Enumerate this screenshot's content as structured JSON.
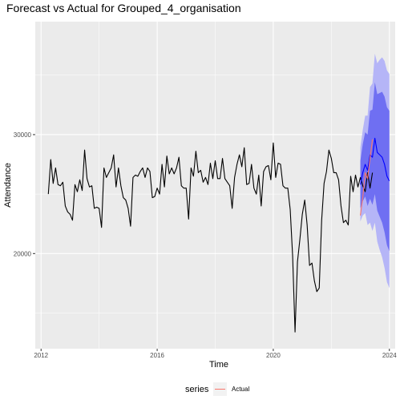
{
  "chart_data": {
    "type": "line",
    "title": "Forecast vs Actual for Grouped_4_organisation",
    "xlabel": "Time",
    "ylabel": "Attendance",
    "xlim": [
      2011.8,
      2024.2
    ],
    "ylim": [
      12000,
      39500
    ],
    "x_ticks": [
      2012,
      2016,
      2020,
      2024
    ],
    "x_tick_labels": [
      "2012",
      "2016",
      "2020",
      "2024"
    ],
    "y_ticks": [
      20000,
      30000
    ],
    "y_tick_labels": [
      "20000",
      "30000"
    ],
    "grid": true,
    "legend": {
      "title": "series",
      "position": "bottom",
      "entries": [
        {
          "label": "Actual",
          "color": "#f8766d"
        }
      ]
    },
    "colors": {
      "history": "#000000",
      "forecast": "#0000ff",
      "band80": "#6f6ff2",
      "band95": "#b5b5f7",
      "actual": "#f8766d",
      "panel": "#ebebeb"
    },
    "series": [
      {
        "role": "history",
        "start": 2012.25,
        "step": 0.0833333,
        "values": [
          25000,
          27900,
          25900,
          27200,
          25800,
          25700,
          26000,
          24000,
          23500,
          23300,
          22800,
          25800,
          25200,
          26200,
          25300,
          28700,
          26300,
          25600,
          25700,
          23800,
          23900,
          23800,
          22200,
          27200,
          26400,
          26800,
          27200,
          28300,
          25600,
          27200,
          25700,
          24700,
          24500,
          23800,
          22300,
          26400,
          26600,
          26500,
          26900,
          27200,
          26400,
          27200,
          26900,
          24700,
          24800,
          25500,
          25000,
          27500,
          25600,
          28200,
          26700,
          27200,
          26700,
          27200,
          28100,
          25700,
          25500,
          25500,
          22900,
          27200,
          26500,
          28600,
          26800,
          27000,
          26000,
          26400,
          25800,
          27600,
          26300,
          27800,
          26300,
          26300,
          28000,
          26300,
          26000,
          25700,
          23800,
          26400,
          27500,
          28300,
          27300,
          28900,
          25800,
          25900,
          27500,
          25500,
          25000,
          26600,
          24000,
          26900,
          27300,
          27400,
          26200,
          29300,
          26400,
          27600,
          27500,
          25700,
          25500,
          25500,
          23700,
          19800,
          13400,
          19300,
          21200,
          23300,
          24500,
          22400,
          19000,
          19200,
          17700,
          16800,
          17100,
          22800,
          25900,
          26900,
          28700,
          28000,
          26800,
          26800,
          26200,
          24000,
          22600,
          22800,
          22400,
          26500,
          25200,
          26600,
          25600,
          26400,
          25700,
          25200,
          26800,
          25500,
          26800
        ]
      },
      {
        "role": "forecast",
        "start": 2023.0,
        "step": 0.0833333,
        "values": [
          25800,
          26800,
          27500,
          27000,
          28300,
          28100,
          29700,
          28500,
          28300,
          28100,
          27500,
          26500,
          26100
        ],
        "lower80": [
          23800,
          24400,
          24800,
          24000,
          24600,
          24100,
          25000,
          23600,
          23100,
          22600,
          21800,
          20700,
          20200
        ],
        "upper80": [
          27800,
          29200,
          30200,
          30000,
          32000,
          32100,
          34400,
          33400,
          33500,
          33600,
          33200,
          32300,
          32000
        ],
        "lower95": [
          22700,
          23200,
          23400,
          22400,
          22600,
          21900,
          22600,
          21000,
          20300,
          19700,
          18800,
          17600,
          17100
        ],
        "upper95": [
          28900,
          30400,
          31600,
          31600,
          34000,
          34300,
          36800,
          36000,
          36300,
          36500,
          36200,
          35400,
          35100
        ]
      },
      {
        "name": "Actual",
        "role": "actual",
        "start": 2023.0,
        "step": 0.0833333,
        "values": [
          23200,
          24700,
          26800,
          26300,
          28000,
          29600
        ]
      }
    ]
  }
}
